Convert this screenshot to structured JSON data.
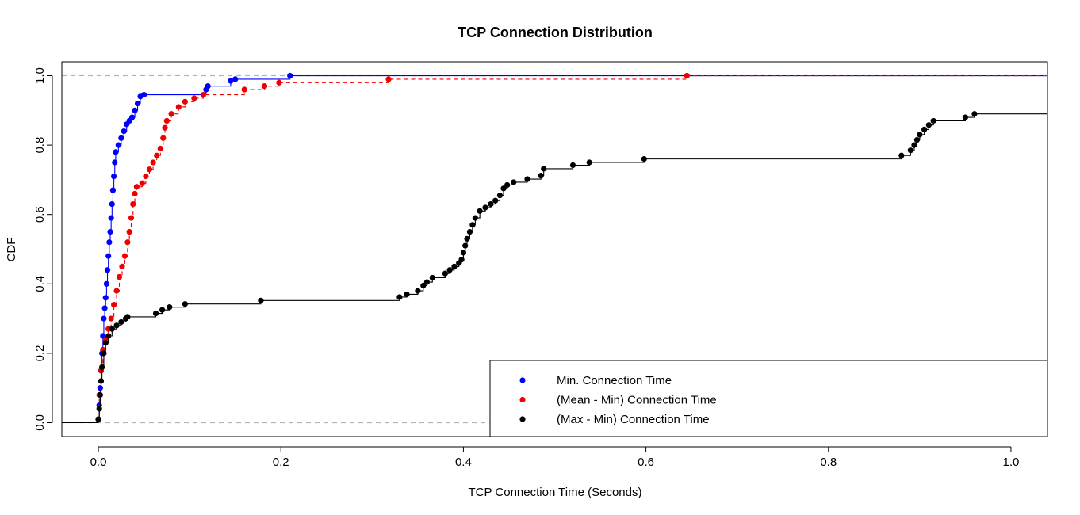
{
  "chart_data": {
    "type": "scatter",
    "title": "TCP Connection Distribution",
    "xlabel": "TCP Connection Time (Seconds)",
    "ylabel": "CDF",
    "xlim": [
      -0.04,
      1.04
    ],
    "ylim": [
      -0.04,
      1.04
    ],
    "xticks": [
      0.0,
      0.2,
      0.4,
      0.6,
      0.8,
      1.0
    ],
    "xtick_labels": [
      "0.0",
      "0.2",
      "0.4",
      "0.6",
      "0.8",
      "1.0"
    ],
    "yticks": [
      0.0,
      0.2,
      0.4,
      0.6,
      0.8,
      1.0
    ],
    "ytick_labels": [
      "0.0",
      "0.2",
      "0.4",
      "0.6",
      "0.8",
      "1.0"
    ],
    "reference_lines_y": [
      0.0,
      1.0
    ],
    "grid": false,
    "legend_position": "bottom-right",
    "plot_style": "empirical CDF step function with points",
    "series": [
      {
        "name": "Min. Connection Time",
        "color": "#0000ff",
        "line_style": "solid",
        "points": [
          [
            0.0,
            0.01
          ],
          [
            0.001,
            0.05
          ],
          [
            0.002,
            0.1
          ],
          [
            0.003,
            0.15
          ],
          [
            0.004,
            0.2
          ],
          [
            0.005,
            0.25
          ],
          [
            0.006,
            0.3
          ],
          [
            0.007,
            0.33
          ],
          [
            0.008,
            0.36
          ],
          [
            0.009,
            0.4
          ],
          [
            0.01,
            0.44
          ],
          [
            0.011,
            0.48
          ],
          [
            0.012,
            0.52
          ],
          [
            0.013,
            0.55
          ],
          [
            0.014,
            0.59
          ],
          [
            0.015,
            0.63
          ],
          [
            0.016,
            0.67
          ],
          [
            0.017,
            0.71
          ],
          [
            0.018,
            0.75
          ],
          [
            0.019,
            0.78
          ],
          [
            0.022,
            0.8
          ],
          [
            0.025,
            0.82
          ],
          [
            0.028,
            0.84
          ],
          [
            0.031,
            0.86
          ],
          [
            0.034,
            0.87
          ],
          [
            0.037,
            0.88
          ],
          [
            0.04,
            0.9
          ],
          [
            0.043,
            0.92
          ],
          [
            0.046,
            0.94
          ],
          [
            0.05,
            0.945
          ],
          [
            0.118,
            0.96
          ],
          [
            0.12,
            0.97
          ],
          [
            0.145,
            0.985
          ],
          [
            0.15,
            0.99
          ],
          [
            0.21,
            1.0
          ]
        ]
      },
      {
        "name": "(Mean - Min) Connection Time",
        "color": "#ee0000",
        "line_style": "dashed",
        "points": [
          [
            0.0,
            0.01
          ],
          [
            0.001,
            0.08
          ],
          [
            0.003,
            0.15
          ],
          [
            0.005,
            0.21
          ],
          [
            0.008,
            0.24
          ],
          [
            0.011,
            0.27
          ],
          [
            0.014,
            0.3
          ],
          [
            0.017,
            0.34
          ],
          [
            0.02,
            0.38
          ],
          [
            0.023,
            0.42
          ],
          [
            0.026,
            0.45
          ],
          [
            0.029,
            0.48
          ],
          [
            0.032,
            0.52
          ],
          [
            0.034,
            0.55
          ],
          [
            0.036,
            0.59
          ],
          [
            0.038,
            0.63
          ],
          [
            0.04,
            0.66
          ],
          [
            0.042,
            0.68
          ],
          [
            0.048,
            0.69
          ],
          [
            0.052,
            0.71
          ],
          [
            0.056,
            0.73
          ],
          [
            0.06,
            0.75
          ],
          [
            0.064,
            0.77
          ],
          [
            0.068,
            0.79
          ],
          [
            0.071,
            0.82
          ],
          [
            0.073,
            0.85
          ],
          [
            0.075,
            0.87
          ],
          [
            0.08,
            0.89
          ],
          [
            0.088,
            0.91
          ],
          [
            0.095,
            0.925
          ],
          [
            0.105,
            0.935
          ],
          [
            0.115,
            0.945
          ],
          [
            0.16,
            0.96
          ],
          [
            0.182,
            0.97
          ],
          [
            0.198,
            0.98
          ],
          [
            0.318,
            0.99
          ],
          [
            0.645,
            1.0
          ]
        ]
      },
      {
        "name": "(Max - Min) Connection Time",
        "color": "#000000",
        "line_style": "solid",
        "points": [
          [
            0.0,
            0.01
          ],
          [
            0.001,
            0.04
          ],
          [
            0.002,
            0.08
          ],
          [
            0.003,
            0.12
          ],
          [
            0.004,
            0.16
          ],
          [
            0.006,
            0.2
          ],
          [
            0.008,
            0.23
          ],
          [
            0.011,
            0.25
          ],
          [
            0.015,
            0.27
          ],
          [
            0.02,
            0.28
          ],
          [
            0.025,
            0.29
          ],
          [
            0.03,
            0.3
          ],
          [
            0.032,
            0.305
          ],
          [
            0.063,
            0.315
          ],
          [
            0.07,
            0.325
          ],
          [
            0.078,
            0.333
          ],
          [
            0.095,
            0.342
          ],
          [
            0.178,
            0.352
          ],
          [
            0.33,
            0.362
          ],
          [
            0.338,
            0.37
          ],
          [
            0.35,
            0.38
          ],
          [
            0.356,
            0.395
          ],
          [
            0.36,
            0.405
          ],
          [
            0.366,
            0.418
          ],
          [
            0.38,
            0.43
          ],
          [
            0.385,
            0.44
          ],
          [
            0.39,
            0.45
          ],
          [
            0.395,
            0.46
          ],
          [
            0.398,
            0.47
          ],
          [
            0.4,
            0.49
          ],
          [
            0.402,
            0.51
          ],
          [
            0.404,
            0.53
          ],
          [
            0.407,
            0.55
          ],
          [
            0.41,
            0.57
          ],
          [
            0.413,
            0.59
          ],
          [
            0.418,
            0.61
          ],
          [
            0.424,
            0.62
          ],
          [
            0.43,
            0.63
          ],
          [
            0.435,
            0.64
          ],
          [
            0.44,
            0.655
          ],
          [
            0.444,
            0.675
          ],
          [
            0.448,
            0.685
          ],
          [
            0.455,
            0.693
          ],
          [
            0.47,
            0.702
          ],
          [
            0.485,
            0.712
          ],
          [
            0.488,
            0.732
          ],
          [
            0.52,
            0.742
          ],
          [
            0.538,
            0.75
          ],
          [
            0.598,
            0.76
          ],
          [
            0.88,
            0.77
          ],
          [
            0.89,
            0.785
          ],
          [
            0.894,
            0.8
          ],
          [
            0.897,
            0.815
          ],
          [
            0.9,
            0.83
          ],
          [
            0.905,
            0.845
          ],
          [
            0.91,
            0.858
          ],
          [
            0.915,
            0.87
          ],
          [
            0.95,
            0.88
          ],
          [
            0.96,
            0.89
          ]
        ]
      }
    ]
  }
}
